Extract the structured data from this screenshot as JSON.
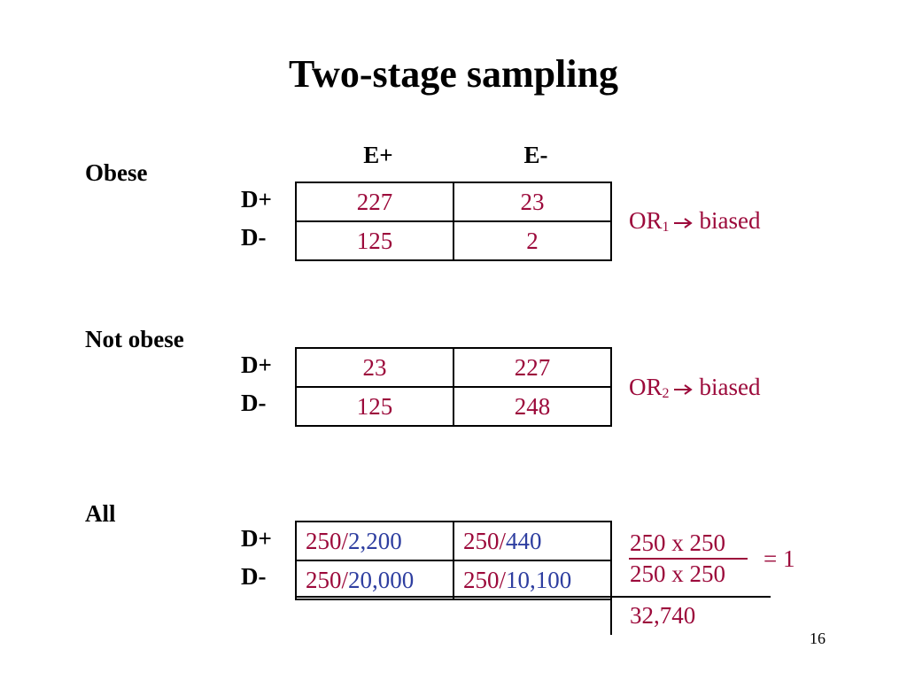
{
  "slide": {
    "title": "Two-stage sampling",
    "page_number": "16"
  },
  "columns": {
    "e_plus": "E+",
    "e_minus": "E-"
  },
  "rows": {
    "d_plus": "D+",
    "d_minus": "D-"
  },
  "obese": {
    "label": "Obese",
    "cells": [
      [
        "227",
        "23"
      ],
      [
        "125",
        "2"
      ]
    ],
    "or_main": "OR",
    "or_sub": "1",
    "or_result": "biased"
  },
  "not_obese": {
    "label": "Not obese",
    "cells": [
      [
        "23",
        "227"
      ],
      [
        "125",
        "248"
      ]
    ],
    "or_main": "OR",
    "or_sub": "2",
    "or_result": "biased"
  },
  "all": {
    "label": "All",
    "cells": [
      [
        {
          "num": "250/",
          "den": "2,200"
        },
        {
          "num": "250/",
          "den": "440"
        }
      ],
      [
        {
          "num": "250/",
          "den": "20,000"
        },
        {
          "num": "250/",
          "den": "10,100"
        }
      ]
    ],
    "frac_numerator": "250 x 250",
    "frac_denominator": "250 x 250",
    "frac_result": "= 1",
    "total": "32,740"
  },
  "colors": {
    "red": "#9c0a3b",
    "blue": "#2e3ea0",
    "text": "#000000"
  }
}
